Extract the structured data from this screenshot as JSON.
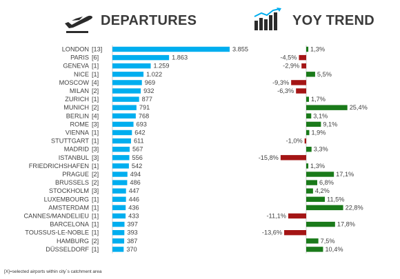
{
  "header": {
    "departures_title": "DEPARTURES",
    "yoy_title": "YOY TREND"
  },
  "footnote": "[X]=selected airports within city´s catchment area",
  "colors": {
    "departures_bar": "#00aeef",
    "yoy_positive": "#1a7a1a",
    "yoy_negative": "#a41515",
    "text": "#404040"
  },
  "chart_data": [
    {
      "type": "bar",
      "orientation": "horizontal",
      "name": "DEPARTURES",
      "categories": [
        "LONDON",
        "PARIS",
        "GENEVA",
        "NICE",
        "MOSCOW",
        "MILAN",
        "ZURICH",
        "MUNICH",
        "BERLIN",
        "ROME",
        "VIENNA",
        "STUTTGART",
        "MADRID",
        "ISTANBUL",
        "FRIEDRICHSHAFEN",
        "PRAGUE",
        "BRUSSELS",
        "STOCKHOLM",
        "LUXEMBOURG",
        "AMSTERDAM",
        "CANNES/MANDELIEU",
        "BARCELONA",
        "TOUSSUS-LE-NOBLE",
        "HAMBURG",
        "DÜSSELDORF"
      ],
      "airports": [
        "[13]",
        "[6]",
        "[1]",
        "[1]",
        "[4]",
        "[2]",
        "[1]",
        "[2]",
        "[4]",
        "[3]",
        "[1]",
        "[1]",
        "[3]",
        "[3]",
        "[1]",
        "[2]",
        "[2]",
        "[3]",
        "[1]",
        "[1]",
        "[1]",
        "[1]",
        "[1]",
        "[2]",
        "[1]"
      ],
      "values": [
        3855,
        1863,
        1259,
        1022,
        969,
        932,
        877,
        791,
        768,
        693,
        642,
        611,
        567,
        556,
        542,
        494,
        486,
        447,
        446,
        436,
        433,
        397,
        393,
        387,
        370
      ],
      "value_labels": [
        "3.855",
        "1.863",
        "1.259",
        "1.022",
        "969",
        "932",
        "877",
        "791",
        "768",
        "693",
        "642",
        "611",
        "567",
        "556",
        "542",
        "494",
        "486",
        "447",
        "446",
        "436",
        "433",
        "397",
        "393",
        "387",
        "370"
      ]
    },
    {
      "type": "bar",
      "orientation": "horizontal",
      "name": "YOY TREND",
      "categories": [
        "LONDON",
        "PARIS",
        "GENEVA",
        "NICE",
        "MOSCOW",
        "MILAN",
        "ZURICH",
        "MUNICH",
        "BERLIN",
        "ROME",
        "VIENNA",
        "STUTTGART",
        "MADRID",
        "ISTANBUL",
        "FRIEDRICHSHAFEN",
        "PRAGUE",
        "BRUSSELS",
        "STOCKHOLM",
        "LUXEMBOURG",
        "AMSTERDAM",
        "CANNES/MANDELIEU",
        "BARCELONA",
        "TOUSSUS-LE-NOBLE",
        "HAMBURG",
        "DÜSSELDORF"
      ],
      "values": [
        1.3,
        -4.5,
        -2.9,
        5.5,
        -9.3,
        -6.3,
        1.7,
        25.4,
        3.1,
        9.1,
        1.9,
        -1.0,
        3.3,
        -15.8,
        1.3,
        17.1,
        6.8,
        4.2,
        11.5,
        22.8,
        -11.1,
        17.8,
        -13.6,
        7.5,
        10.4
      ],
      "value_labels": [
        "1,3%",
        "-4,5%",
        "-2,9%",
        "5,5%",
        "-9,3%",
        "-6,3%",
        "1,7%",
        "25,4%",
        "3,1%",
        "9,1%",
        "1,9%",
        "-1,0%",
        "3,3%",
        "-15,8%",
        "1,3%",
        "17,1%",
        "6,8%",
        "4,2%",
        "11,5%",
        "22,8%",
        "-11,1%",
        "17,8%",
        "-13,6%",
        "7,5%",
        "10,4%"
      ],
      "unit": "%"
    }
  ]
}
